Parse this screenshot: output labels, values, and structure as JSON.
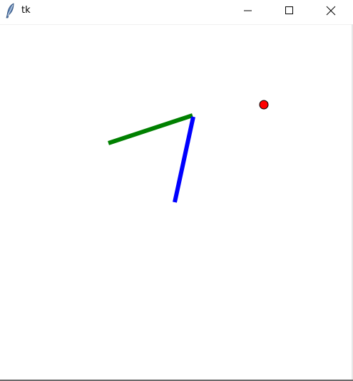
{
  "window": {
    "title": "tk",
    "app_icon": "feather-icon",
    "controls": {
      "minimize_icon": "minimize-icon",
      "maximize_icon": "maximize-icon",
      "close_icon": "close-icon"
    }
  },
  "canvas": {
    "background": "#ffffff",
    "items": [
      {
        "name": "green-line",
        "kind": "line",
        "color": "#008000"
      },
      {
        "name": "blue-line",
        "kind": "line",
        "color": "#0000ff"
      },
      {
        "name": "red-dot",
        "kind": "circle",
        "color": "#ff0000",
        "outline": "#000000"
      }
    ]
  }
}
